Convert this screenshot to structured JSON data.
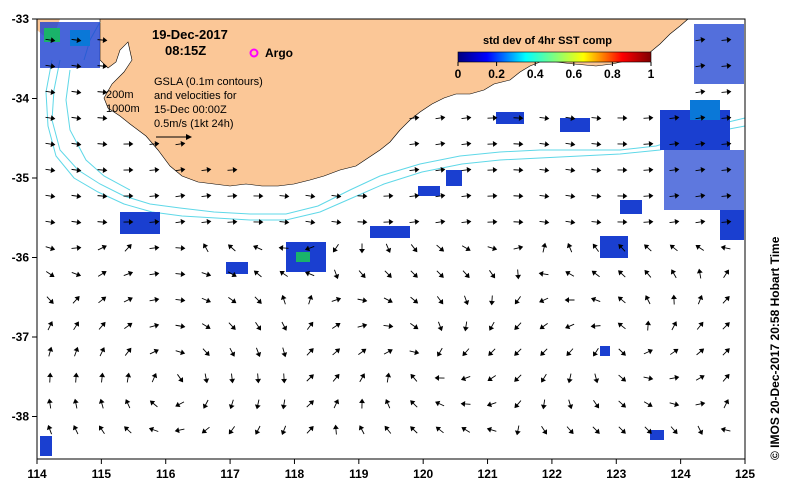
{
  "header": {
    "date": "19-Dec-2017",
    "time": "08:15Z",
    "argo_label": "Argo"
  },
  "notes": {
    "contour_200": "200m",
    "contour_1000": "1000m",
    "gsla_line1": "GSLA (0.1m contours)",
    "gsla_line2": "and velocities for",
    "gsla_line3": "15-Dec 00:00Z",
    "scale_label": "0.5m/s (1kt 24h)"
  },
  "colorbar": {
    "title": "std dev of 4hr SST comp",
    "ticks": [
      "0",
      "0.2",
      "0.4",
      "0.6",
      "0.8",
      "1"
    ]
  },
  "axes": {
    "x_ticks": [
      "114",
      "115",
      "116",
      "117",
      "118",
      "119",
      "120",
      "121",
      "122",
      "123",
      "124",
      "125"
    ],
    "y_ticks": [
      "-33",
      "-34",
      "-35",
      "-36",
      "-37",
      "-38"
    ]
  },
  "credit": "© IMOS 20-Dec-2017 20:58 Hobart Time",
  "colors": {
    "land": "#fbc797",
    "contour": "#5fd8e8",
    "argo": "#ff00ff",
    "sst_low": "#1a3fd0",
    "sst_mid": "#1ab36a"
  }
}
